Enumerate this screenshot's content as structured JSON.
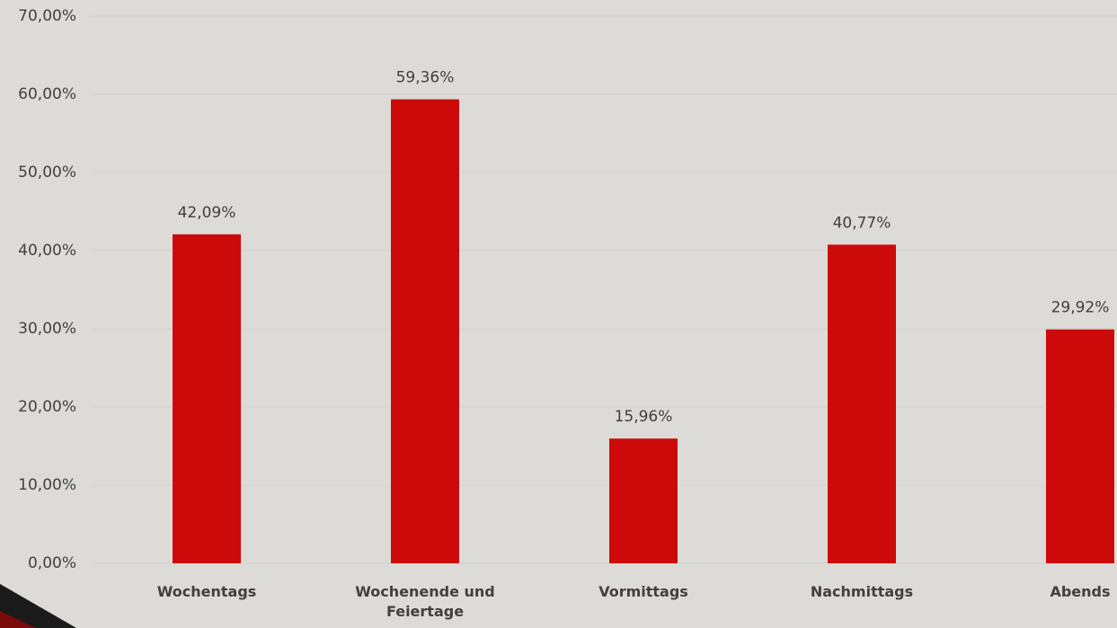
{
  "chart_data": {
    "type": "bar",
    "categories": [
      "Wochentags",
      "Wochenende und Feiertage",
      "Vormittags",
      "Nachmittags",
      "Abends"
    ],
    "values": [
      42.09,
      59.36,
      15.96,
      40.77,
      29.92
    ],
    "value_labels": [
      "42,09%",
      "59,36%",
      "15,96%",
      "40,77%",
      "29,92%"
    ],
    "color": "#cc0a0a",
    "ylim": [
      0,
      70
    ],
    "yticks": [
      {
        "value": 0,
        "label": "0,00%"
      },
      {
        "value": 10,
        "label": "10,00%"
      },
      {
        "value": 20,
        "label": "20,00%"
      },
      {
        "value": 30,
        "label": "30,00%"
      },
      {
        "value": 40,
        "label": "40,00%"
      },
      {
        "value": 50,
        "label": "50,00%"
      },
      {
        "value": 60,
        "label": "60,00%"
      },
      {
        "value": 70,
        "label": "70,00%"
      }
    ],
    "grid": true
  }
}
